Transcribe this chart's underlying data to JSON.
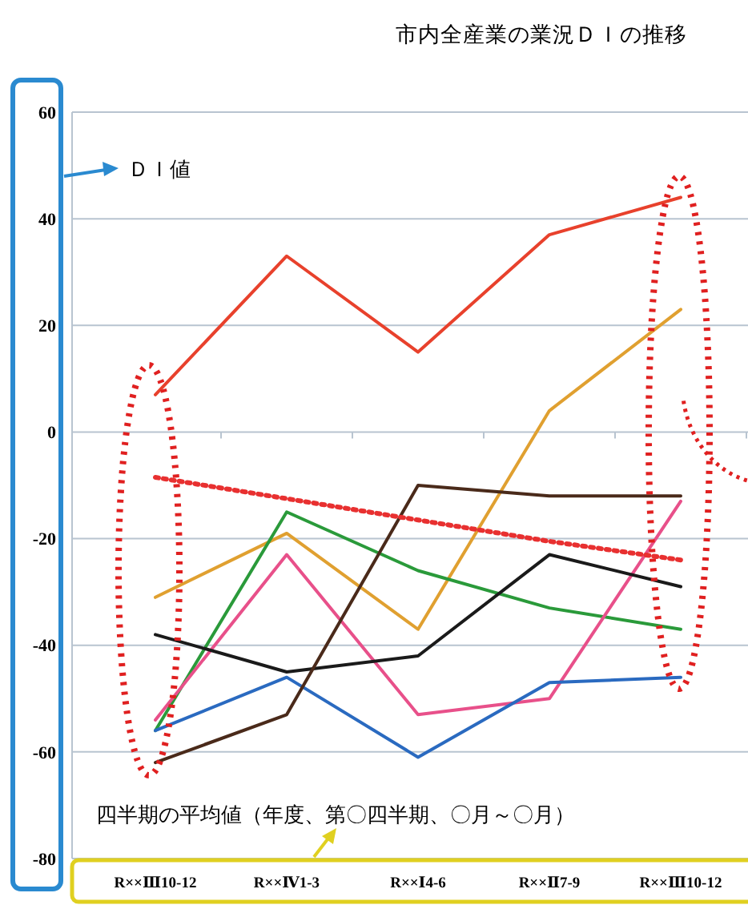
{
  "chart_data": {
    "type": "line",
    "title": "市内全産業の業況ＤＩの推移",
    "annotations": [
      "ＤＩ値",
      "四半期の平均値（年度、第〇四半期、〇月～〇月）"
    ],
    "categories": [
      "R××Ⅲ10-12",
      "R××Ⅳ1-3",
      "R××Ⅰ4-6",
      "R××Ⅱ7-9",
      "R××Ⅲ10-12"
    ],
    "series": [
      {
        "color": "#e8412c",
        "values": [
          7,
          33,
          15,
          37,
          44
        ]
      },
      {
        "color": "#e0a030",
        "values": [
          -31,
          -19,
          -37,
          4,
          23
        ]
      },
      {
        "color": "#2a9a3a",
        "values": [
          -56,
          -15,
          -26,
          -33,
          -37
        ]
      },
      {
        "color": "#e8508a",
        "values": [
          -54,
          -23,
          -53,
          -50,
          -13
        ]
      },
      {
        "color": "#1a1a1a",
        "values": [
          -38,
          -45,
          -42,
          -23,
          -29
        ]
      },
      {
        "color": "#2a6ac0",
        "values": [
          -56,
          -46,
          -61,
          -47,
          -46
        ]
      },
      {
        "color": "#4a2a1a",
        "values": [
          -62,
          -53,
          -10,
          -12,
          -12
        ]
      },
      {
        "color": "#e83030",
        "values": [
          -8.5,
          -12.5,
          -16.5,
          -20.5,
          -24
        ],
        "line_style": "dotted"
      }
    ],
    "ylim": [
      -80,
      60
    ],
    "yticks": [
      -80,
      -60,
      -40,
      -20,
      0,
      20,
      40,
      60
    ],
    "grid": "y"
  }
}
